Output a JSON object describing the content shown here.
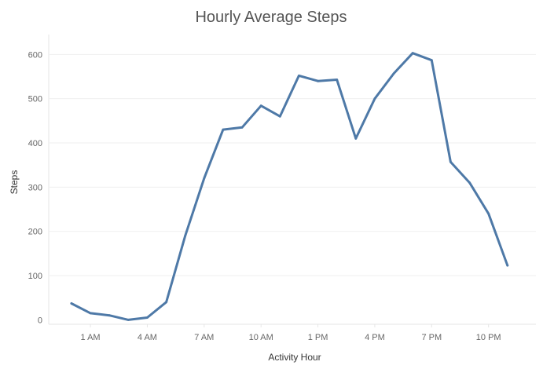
{
  "chart_data": {
    "type": "line",
    "title": "Hourly Average Steps",
    "xlabel": "Activity Hour",
    "ylabel": "Steps",
    "x": [
      0,
      1,
      2,
      3,
      4,
      5,
      6,
      7,
      8,
      9,
      10,
      11,
      12,
      13,
      14,
      15,
      16,
      17,
      18,
      19,
      20,
      21,
      22,
      23
    ],
    "x_tick_values": [
      1,
      4,
      7,
      10,
      13,
      16,
      19,
      22
    ],
    "x_tick_labels": [
      "1 AM",
      "4 AM",
      "7 AM",
      "10 AM",
      "1 PM",
      "4 PM",
      "7 PM",
      "10 PM"
    ],
    "xlim": [
      -1.2,
      24.5
    ],
    "ylim": [
      -10,
      645
    ],
    "y_ticks": [
      0,
      100,
      200,
      300,
      400,
      500,
      600
    ],
    "series": [
      {
        "values": [
          37,
          15,
          10,
          0,
          5,
          40,
          190,
          320,
          430,
          435,
          484,
          460,
          552,
          540,
          543,
          410,
          500,
          557,
          603,
          587,
          357,
          310,
          240,
          123
        ],
        "color": "#4e79a7"
      }
    ],
    "grid": true
  }
}
